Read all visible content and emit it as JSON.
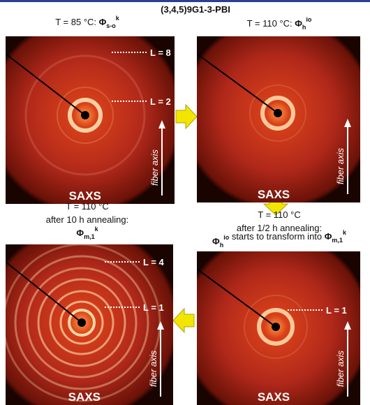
{
  "title": "(3,4,5)9G1-3-PBI",
  "panels": [
    {
      "caption": [
        [
          {
            "text": "T = 85 °C: "
          },
          {
            "text": "Φ",
            "sub": "s-o",
            "sup": "k"
          }
        ]
      ],
      "layer_lines": [
        "L = 8",
        "L = 2"
      ],
      "detector": "SAXS",
      "axis_label": "fiber axis"
    },
    {
      "caption": [
        [
          {
            "text": "T = 110 °C: "
          },
          {
            "text": "Φ",
            "sub": "h",
            "sup": "io"
          }
        ]
      ],
      "layer_lines": [],
      "detector": "SAXS",
      "axis_label": "fiber axis"
    },
    {
      "caption": [
        [
          {
            "text": "T = 110 °C"
          }
        ],
        [
          {
            "text": "after 1/2 h annealing:"
          }
        ],
        [
          {
            "text": "Φ",
            "sub": "h",
            "sup": "io"
          },
          {
            "text": " starts to transform into "
          },
          {
            "text": "Φ",
            "sub": "m,1",
            "sup": "k"
          }
        ]
      ],
      "layer_lines": [
        "L = 1"
      ],
      "detector": "SAXS",
      "axis_label": "fiber axis"
    },
    {
      "caption": [
        [
          {
            "text": "T = 110 °C"
          }
        ],
        [
          {
            "text": "after 10 h annealing:"
          }
        ],
        [
          {
            "text": "Φ",
            "sub": "m,1",
            "sup": "k"
          }
        ]
      ],
      "layer_lines": [
        "L = 4",
        "L = 1"
      ],
      "detector": "SAXS",
      "axis_label": "fiber axis"
    }
  ]
}
